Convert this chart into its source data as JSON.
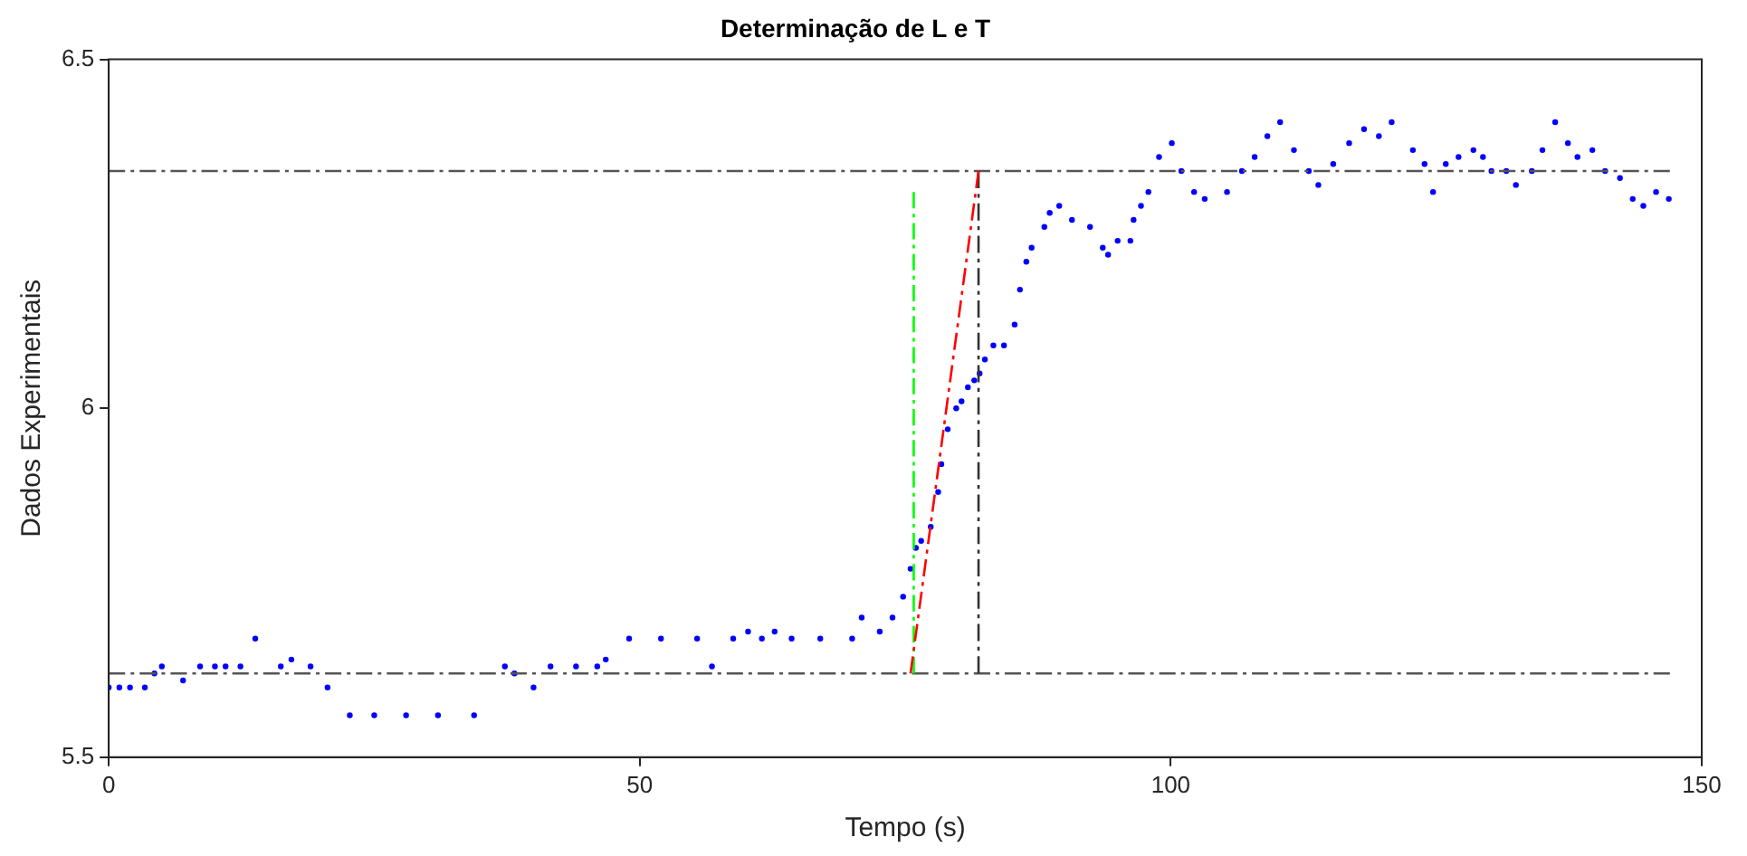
{
  "chart_data": {
    "type": "scatter",
    "title": "Determinação de L e T",
    "xlabel": "Tempo (s)",
    "ylabel": "Dados Experimentais",
    "xlim": [
      0,
      150
    ],
    "ylim": [
      5.5,
      6.5
    ],
    "xticks": [
      0,
      50,
      100,
      150
    ],
    "yticks": [
      5.5,
      6,
      6.5
    ],
    "grid": false,
    "series": [
      {
        "color": "#0000ff",
        "marker": "circle",
        "x": [
          0,
          1,
          2,
          3.4,
          4.3,
          5,
          7,
          8.6,
          10,
          11,
          12.4,
          13.8,
          16.2,
          17.2,
          19,
          20.6,
          22.7,
          25,
          28,
          31,
          34.4,
          37.3,
          38.2,
          40,
          41.6,
          44,
          46,
          46.8,
          49,
          52,
          55.4,
          56.8,
          58.8,
          60.2,
          61.5,
          62.7,
          64.3,
          67,
          70,
          70.9,
          72.6,
          73.8,
          74.8,
          75.5,
          76,
          76.5,
          77.4,
          78.1,
          78.4,
          79,
          79.8,
          80.3,
          80.9,
          81.5,
          82,
          82.5,
          83.3,
          84.3,
          85.3,
          85.8,
          86.4,
          86.9,
          88.1,
          88.6,
          89.5,
          90.7,
          92.4,
          93.6,
          94.1,
          95,
          96.2,
          96.5,
          97.2,
          97.9,
          98.9,
          100.1,
          101,
          102.2,
          103.2,
          105.3,
          106.7,
          107.9,
          109.1,
          110.3,
          111.6,
          113,
          113.9,
          115.3,
          116.8,
          118.2,
          119.6,
          120.8,
          122.8,
          123.9,
          124.7,
          125.9,
          127.1,
          128.5,
          129.4,
          130.2,
          131.6,
          132.5,
          134,
          135,
          136.2,
          137.4,
          138.3,
          139.7,
          140.9,
          142.3,
          143.5,
          144.5,
          145.7,
          146.9
        ],
        "values": [
          5.6,
          5.6,
          5.6,
          5.6,
          5.62,
          5.63,
          5.61,
          5.63,
          5.63,
          5.63,
          5.63,
          5.67,
          5.63,
          5.64,
          5.63,
          5.6,
          5.56,
          5.56,
          5.56,
          5.56,
          5.56,
          5.63,
          5.62,
          5.6,
          5.63,
          5.63,
          5.63,
          5.64,
          5.67,
          5.67,
          5.67,
          5.63,
          5.67,
          5.68,
          5.67,
          5.68,
          5.67,
          5.67,
          5.67,
          5.7,
          5.68,
          5.7,
          5.73,
          5.77,
          5.8,
          5.81,
          5.83,
          5.88,
          5.92,
          5.97,
          6,
          6.01,
          6.03,
          6.04,
          6.05,
          6.07,
          6.09,
          6.09,
          6.12,
          6.17,
          6.21,
          6.23,
          6.26,
          6.28,
          6.29,
          6.27,
          6.26,
          6.23,
          6.22,
          6.24,
          6.24,
          6.27,
          6.29,
          6.31,
          6.36,
          6.38,
          6.34,
          6.31,
          6.3,
          6.31,
          6.34,
          6.36,
          6.39,
          6.41,
          6.37,
          6.34,
          6.32,
          6.35,
          6.38,
          6.4,
          6.39,
          6.41,
          6.37,
          6.35,
          6.31,
          6.35,
          6.36,
          6.37,
          6.36,
          6.34,
          6.34,
          6.32,
          6.34,
          6.37,
          6.41,
          6.38,
          6.36,
          6.37,
          6.34,
          6.33,
          6.3,
          6.29,
          6.31,
          6.3
        ]
      },
      {
        "type": "line",
        "color": "#555555",
        "line_style": "dashed",
        "x": [
          0,
          147
        ],
        "values": [
          6.34,
          6.34
        ]
      },
      {
        "type": "line",
        "color": "#555555",
        "line_style": "dashed",
        "x": [
          0,
          147
        ],
        "values": [
          5.62,
          5.62
        ]
      },
      {
        "type": "line",
        "color": "#00ff00",
        "line_style": "dashed",
        "x": [
          75.8,
          75.8
        ],
        "values": [
          5.62,
          6.31
        ]
      },
      {
        "type": "line",
        "color": "#333333",
        "line_style": "dashed",
        "x": [
          81.9,
          81.9
        ],
        "values": [
          5.62,
          6.34
        ]
      },
      {
        "type": "line",
        "color": "#ff0000",
        "line_style": "dashed",
        "x": [
          75.5,
          81.9
        ],
        "values": [
          5.62,
          6.34
        ]
      }
    ]
  }
}
